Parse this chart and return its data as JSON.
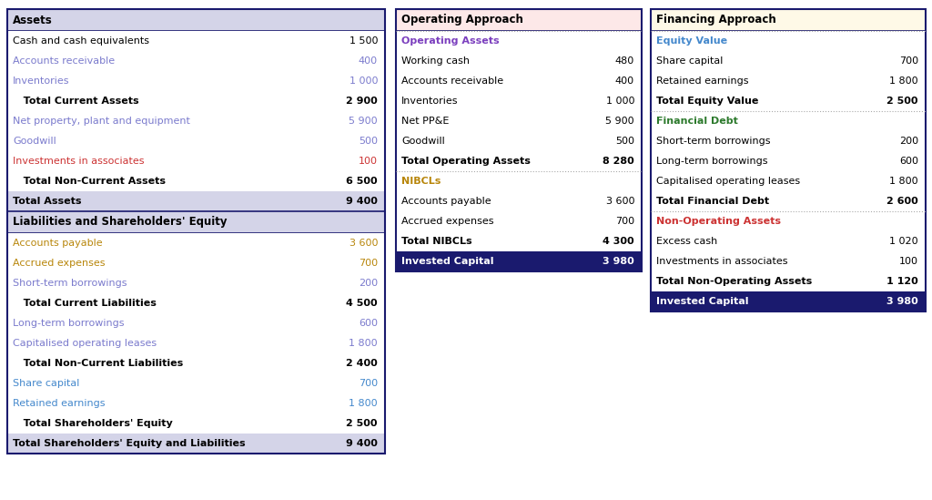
{
  "table1": {
    "title": "Assets",
    "title_bg": "#d4d4e8",
    "rows": [
      {
        "label": "Cash and cash equivalents",
        "value": "1 500",
        "lc": "#000000",
        "vc": "#000000",
        "bold": false,
        "indent": false
      },
      {
        "label": "Accounts receivable",
        "value": "400",
        "lc": "#7b7bcd",
        "vc": "#7b7bcd",
        "bold": false,
        "indent": false
      },
      {
        "label": "Inventories",
        "value": "1 000",
        "lc": "#7b7bcd",
        "vc": "#7b7bcd",
        "bold": false,
        "indent": false
      },
      {
        "label": "   Total Current Assets",
        "value": "2 900",
        "lc": "#000000",
        "vc": "#000000",
        "bold": true,
        "indent": true
      },
      {
        "label": "Net property, plant and equipment",
        "value": "5 900",
        "lc": "#7b7bcd",
        "vc": "#7b7bcd",
        "bold": false,
        "indent": false
      },
      {
        "label": "Goodwill",
        "value": "500",
        "lc": "#7b7bcd",
        "vc": "#7b7bcd",
        "bold": false,
        "indent": false
      },
      {
        "label": "Investments in associates",
        "value": "100",
        "lc": "#cc3333",
        "vc": "#cc3333",
        "bold": false,
        "indent": false
      },
      {
        "label": "   Total Non-Current Assets",
        "value": "6 500",
        "lc": "#000000",
        "vc": "#000000",
        "bold": true,
        "indent": true
      },
      {
        "label": "Total Assets",
        "value": "9 400",
        "lc": "#000000",
        "vc": "#000000",
        "bold": true,
        "indent": false,
        "bg": "#d4d4e8"
      }
    ],
    "section2_title": "Liabilities and Shareholders' Equity",
    "section2_rows": [
      {
        "label": "Accounts payable",
        "value": "3 600",
        "lc": "#b8860b",
        "vc": "#b8860b",
        "bold": false
      },
      {
        "label": "Accrued expenses",
        "value": "700",
        "lc": "#b8860b",
        "vc": "#b8860b",
        "bold": false
      },
      {
        "label": "Short-term borrowings",
        "value": "200",
        "lc": "#7b7bcd",
        "vc": "#7b7bcd",
        "bold": false
      },
      {
        "label": "   Total Current Liabilities",
        "value": "4 500",
        "lc": "#000000",
        "vc": "#000000",
        "bold": true
      },
      {
        "label": "Long-term borrowings",
        "value": "600",
        "lc": "#7b7bcd",
        "vc": "#7b7bcd",
        "bold": false
      },
      {
        "label": "Capitalised operating leases",
        "value": "1 800",
        "lc": "#7b7bcd",
        "vc": "#7b7bcd",
        "bold": false
      },
      {
        "label": "   Total Non-Current Liabilities",
        "value": "2 400",
        "lc": "#000000",
        "vc": "#000000",
        "bold": true
      },
      {
        "label": "Share capital",
        "value": "700",
        "lc": "#4488cc",
        "vc": "#4488cc",
        "bold": false
      },
      {
        "label": "Retained earnings",
        "value": "1 800",
        "lc": "#4488cc",
        "vc": "#4488cc",
        "bold": false
      },
      {
        "label": "   Total Shareholders' Equity",
        "value": "2 500",
        "lc": "#000000",
        "vc": "#000000",
        "bold": true
      },
      {
        "label": "Total Shareholders' Equity and Liabilities",
        "value": "9 400",
        "lc": "#000000",
        "vc": "#000000",
        "bold": true,
        "bg": "#d4d4e8"
      }
    ]
  },
  "table2": {
    "title": "Operating Approach",
    "title_bg": "#fde8e8",
    "s1_title": "Operating Assets",
    "s1_color": "#7b3fbe",
    "s1_rows": [
      {
        "label": "Working cash",
        "value": "480",
        "lc": "#000000",
        "vc": "#000000",
        "bold": false
      },
      {
        "label": "Accounts receivable",
        "value": "400",
        "lc": "#000000",
        "vc": "#000000",
        "bold": false
      },
      {
        "label": "Inventories",
        "value": "1 000",
        "lc": "#000000",
        "vc": "#000000",
        "bold": false
      },
      {
        "label": "Net PP&E",
        "value": "5 900",
        "lc": "#000000",
        "vc": "#000000",
        "bold": false
      },
      {
        "label": "Goodwill",
        "value": "500",
        "lc": "#000000",
        "vc": "#000000",
        "bold": false
      },
      {
        "label": "Total Operating Assets",
        "value": "8 280",
        "lc": "#000000",
        "vc": "#000000",
        "bold": true
      }
    ],
    "s2_title": "NIBCLs",
    "s2_color": "#b8860b",
    "s2_rows": [
      {
        "label": "Accounts payable",
        "value": "3 600",
        "lc": "#000000",
        "vc": "#000000",
        "bold": false
      },
      {
        "label": "Accrued expenses",
        "value": "700",
        "lc": "#000000",
        "vc": "#000000",
        "bold": false
      },
      {
        "label": "Total NIBCLs",
        "value": "4 300",
        "lc": "#000000",
        "vc": "#000000",
        "bold": true
      }
    ],
    "ic_label": "Invested Capital",
    "ic_value": "3 980"
  },
  "table3": {
    "title": "Financing Approach",
    "title_bg": "#fef9e7",
    "s1_title": "Equity Value",
    "s1_color": "#4488cc",
    "s1_rows": [
      {
        "label": "Share capital",
        "value": "700",
        "lc": "#000000",
        "vc": "#000000",
        "bold": false
      },
      {
        "label": "Retained earnings",
        "value": "1 800",
        "lc": "#000000",
        "vc": "#000000",
        "bold": false
      },
      {
        "label": "Total Equity Value",
        "value": "2 500",
        "lc": "#000000",
        "vc": "#000000",
        "bold": true
      }
    ],
    "s2_title": "Financial Debt",
    "s2_color": "#2d7a2d",
    "s2_rows": [
      {
        "label": "Short-term borrowings",
        "value": "200",
        "lc": "#000000",
        "vc": "#000000",
        "bold": false
      },
      {
        "label": "Long-term borrowings",
        "value": "600",
        "lc": "#000000",
        "vc": "#000000",
        "bold": false
      },
      {
        "label": "Capitalised operating leases",
        "value": "1 800",
        "lc": "#000000",
        "vc": "#000000",
        "bold": false
      },
      {
        "label": "Total Financial Debt",
        "value": "2 600",
        "lc": "#000000",
        "vc": "#000000",
        "bold": true
      }
    ],
    "s3_title": "Non-Operating Assets",
    "s3_color": "#cc3333",
    "s3_rows": [
      {
        "label": "Excess cash",
        "value": "1 020",
        "lc": "#000000",
        "vc": "#000000",
        "bold": false
      },
      {
        "label": "Investments in associates",
        "value": "100",
        "lc": "#000000",
        "vc": "#000000",
        "bold": false
      },
      {
        "label": "Total Non-Operating Assets",
        "value": "1 120",
        "lc": "#000000",
        "vc": "#000000",
        "bold": true
      }
    ],
    "ic_label": "Invested Capital",
    "ic_value": "3 980"
  },
  "ic_bg": "#1a1a6e",
  "ic_fg": "#ffffff",
  "border_color": "#1a1a6e",
  "dot_color": "#aaaaaa",
  "bg": "#ffffff",
  "fs": 8.0
}
